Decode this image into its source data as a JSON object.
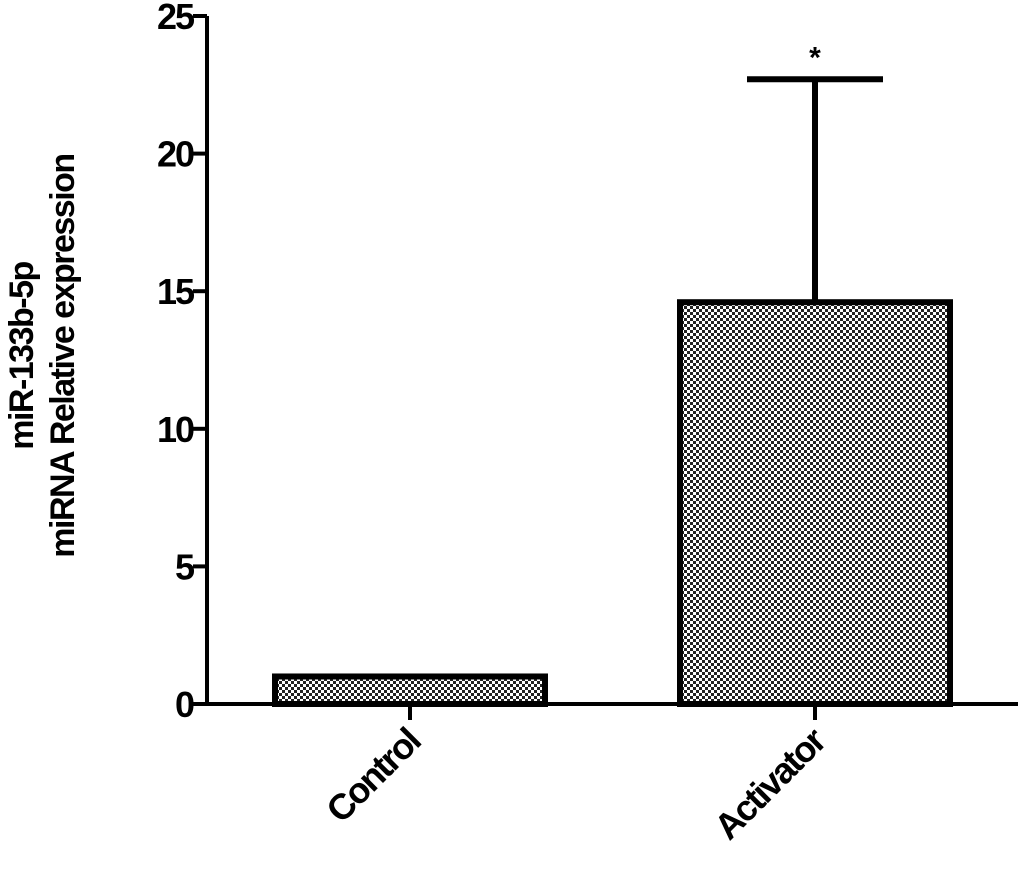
{
  "chart_data": {
    "type": "bar",
    "categories": [
      "Control",
      "Activator"
    ],
    "values": [
      1.0,
      14.6
    ],
    "error_upper": [
      0,
      8.1
    ],
    "ylabel_lines": [
      "miR-133b-5p",
      "miRNA Relative expression"
    ],
    "xlabel": "",
    "ylim": [
      0,
      25
    ],
    "yticks": [
      0,
      5,
      10,
      15,
      20,
      25
    ],
    "annotations": [
      {
        "category": "Activator",
        "text": "*"
      }
    ],
    "grid": false,
    "legend": "none",
    "bar_fill": "checkered gray",
    "colors": {
      "axis": "#000000",
      "bar_edge": "#000000",
      "pattern_dark": "#222222",
      "pattern_light": "#ffffff"
    }
  }
}
